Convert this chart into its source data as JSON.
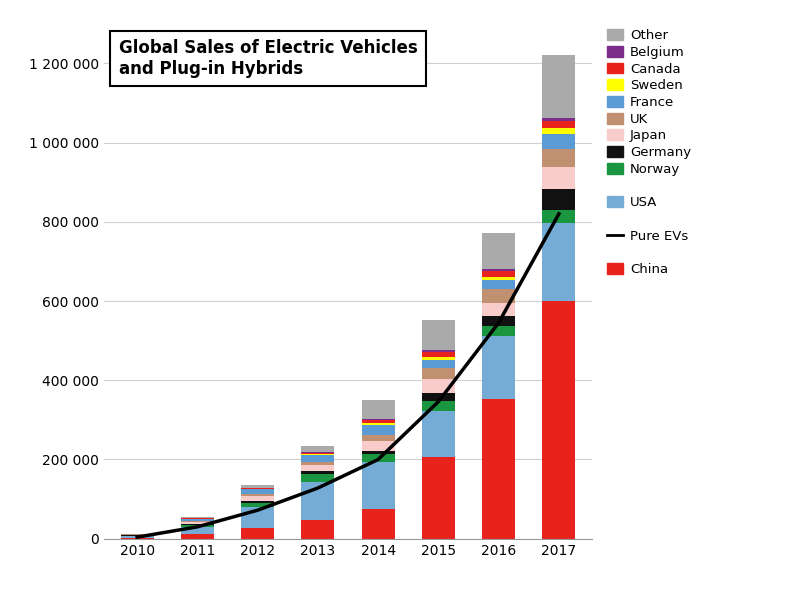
{
  "years": [
    2010,
    2011,
    2012,
    2013,
    2014,
    2015,
    2016,
    2017
  ],
  "title": "Global Sales of Electric Vehicles\nand Plug-in Hybrids",
  "ylim": [
    0,
    1300000
  ],
  "yticks": [
    0,
    200000,
    400000,
    600000,
    800000,
    1000000,
    1200000
  ],
  "ytick_labels": [
    "0",
    "200 000",
    "400 000",
    "600 000",
    "800 000",
    "1 000 000",
    "1 200 000"
  ],
  "segments": {
    "China": [
      3000,
      12000,
      28000,
      47000,
      74000,
      207000,
      352000,
      601000
    ],
    "USA": [
      4000,
      18000,
      53000,
      96000,
      119000,
      115000,
      160000,
      195000
    ],
    "Norway": [
      1000,
      5000,
      10000,
      20000,
      20000,
      25000,
      24000,
      33000
    ],
    "Germany": [
      500,
      2000,
      3000,
      7000,
      9000,
      21000,
      25000,
      54000
    ],
    "Japan": [
      2000,
      6000,
      15000,
      17000,
      24000,
      34000,
      35000,
      54000
    ],
    "UK": [
      500,
      2000,
      4000,
      7000,
      15000,
      28000,
      35000,
      47000
    ],
    "France": [
      1000,
      5000,
      12000,
      17000,
      25000,
      22000,
      21000,
      37000
    ],
    "Sweden": [
      200,
      500,
      1000,
      2000,
      5000,
      7000,
      9000,
      15000
    ],
    "Canada": [
      200,
      800,
      2000,
      4000,
      8000,
      12000,
      15000,
      18000
    ],
    "Belgium": [
      100,
      300,
      800,
      1500,
      3000,
      5000,
      5000,
      8000
    ],
    "Other": [
      500,
      2000,
      8000,
      15000,
      48000,
      75000,
      90000,
      160000
    ]
  },
  "pure_evs": [
    4000,
    30000,
    72000,
    128000,
    200000,
    346000,
    545000,
    820000
  ],
  "colors": {
    "China": "#e8231e",
    "USA": "#74acd5",
    "Norway": "#1a9641",
    "Germany": "#111111",
    "Japan": "#f9cccc",
    "UK": "#c09070",
    "France": "#5b9bd5",
    "Sweden": "#ffff00",
    "Canada": "#e8231e",
    "Belgium": "#7b2d8b",
    "Other": "#aaaaaa"
  },
  "stack_order": [
    "China",
    "USA",
    "Norway",
    "Germany",
    "Japan",
    "UK",
    "France",
    "Sweden",
    "Canada",
    "Belgium",
    "Other"
  ],
  "legend_order_top": [
    "Other",
    "Belgium",
    "Canada",
    "Sweden",
    "France",
    "UK",
    "Japan",
    "Germany",
    "Norway"
  ],
  "background_color": "#ffffff"
}
